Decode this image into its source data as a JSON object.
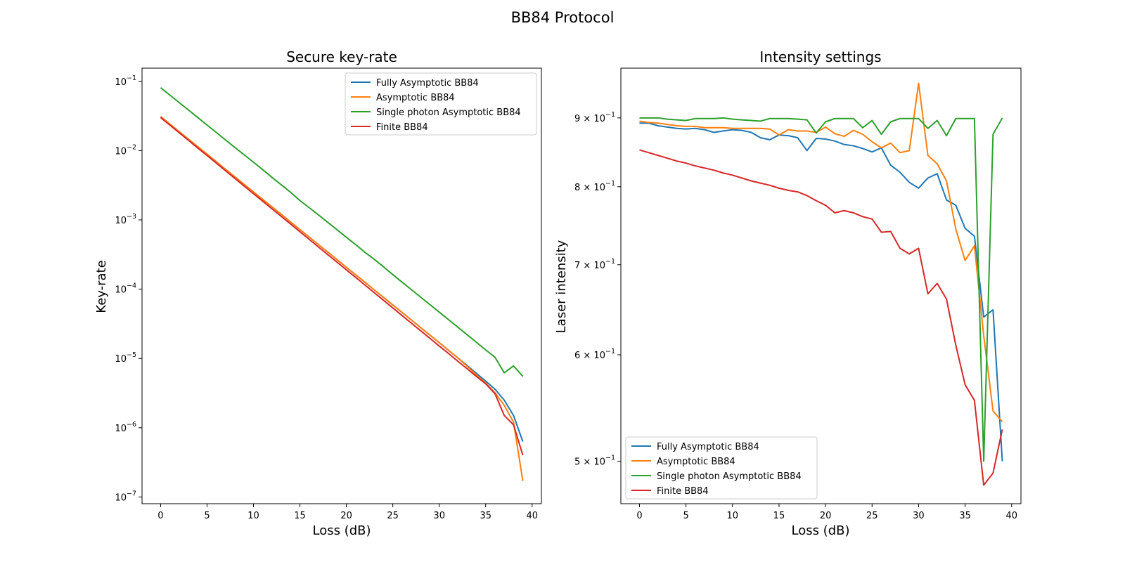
{
  "figure_title": "BB84 Protocol",
  "colors": {
    "Fully Asymptotic BB84": "#1f77b4",
    "Asymptotic BB84": "#ff7f0e",
    "Single photon Asymptotic BB84": "#2ca02c",
    "Finite BB84": "#d62728"
  },
  "chart_data": [
    {
      "type": "line",
      "title": "Secure key-rate",
      "xlabel": "Loss (dB)",
      "ylabel": "Key-rate",
      "yscale": "log",
      "xlim": [
        -2,
        41
      ],
      "ylim": [
        8e-08,
        0.155
      ],
      "xticks": [
        0,
        5,
        10,
        15,
        20,
        25,
        30,
        35,
        40
      ],
      "xtick_labels": [
        "0",
        "5",
        "10",
        "15",
        "20",
        "25",
        "30",
        "35",
        "40"
      ],
      "yticks": [
        {
          "value": 1e-07,
          "base": "10",
          "exp": "−7"
        },
        {
          "value": 1e-06,
          "base": "10",
          "exp": "−6"
        },
        {
          "value": 1e-05,
          "base": "10",
          "exp": "−5"
        },
        {
          "value": 0.0001,
          "base": "10",
          "exp": "−4"
        },
        {
          "value": 0.001,
          "base": "10",
          "exp": "−3"
        },
        {
          "value": 0.01,
          "base": "10",
          "exp": "−2"
        },
        {
          "value": 0.1,
          "base": "10",
          "exp": "−1"
        }
      ],
      "grid": false,
      "legend_position": "upper-right",
      "x": [
        0,
        1,
        2,
        3,
        4,
        5,
        6,
        7,
        8,
        9,
        10,
        11,
        12,
        13,
        14,
        15,
        16,
        17,
        18,
        19,
        20,
        21,
        22,
        23,
        24,
        25,
        26,
        27,
        28,
        29,
        30,
        31,
        32,
        33,
        34,
        35,
        36,
        37,
        38,
        39
      ],
      "series": [
        {
          "name": "Fully Asymptotic BB84",
          "values": [
            0.031,
            0.0241,
            0.0188,
            0.0146,
            0.0114,
            0.0089,
            0.0069,
            0.00536,
            0.00418,
            0.00325,
            0.00253,
            0.00197,
            0.00154,
            0.0012,
            0.00093,
            0.000724,
            0.000564,
            0.000439,
            0.000342,
            0.000266,
            0.000207,
            0.000161,
            0.000126,
            9.77e-05,
            7.61e-05,
            5.92e-05,
            4.61e-05,
            3.59e-05,
            2.79e-05,
            2.17e-05,
            1.69e-05,
            1.31e-05,
            1.02e-05,
            7.9e-06,
            6.1e-06,
            4.7e-06,
            3.6e-06,
            2.5e-06,
            1.5e-06,
            6.3e-07
          ]
        },
        {
          "name": "Asymptotic BB84",
          "values": [
            0.031,
            0.0241,
            0.0188,
            0.0146,
            0.0114,
            0.0089,
            0.0069,
            0.00536,
            0.00418,
            0.00325,
            0.00253,
            0.00197,
            0.00154,
            0.0012,
            0.00093,
            0.000724,
            0.000564,
            0.000439,
            0.000342,
            0.000266,
            0.000207,
            0.000161,
            0.000126,
            9.77e-05,
            7.61e-05,
            5.92e-05,
            4.61e-05,
            3.59e-05,
            2.79e-05,
            2.17e-05,
            1.69e-05,
            1.31e-05,
            1.02e-05,
            7.7e-06,
            5.8e-06,
            4.4e-06,
            3.2e-06,
            2.1e-06,
            1.2e-06,
            1.7e-07
          ]
        },
        {
          "name": "Single photon Asymptotic BB84",
          "values": [
            0.081,
            0.0633,
            0.0494,
            0.0385,
            0.03,
            0.0234,
            0.0183,
            0.0142,
            0.0111,
            0.0087,
            0.0068,
            0.0053,
            0.0041,
            0.0032,
            0.0025,
            0.0019,
            0.0015,
            0.00118,
            0.00092,
            0.00072,
            0.00056,
            0.00044,
            0.00034,
            0.00027,
            0.00021,
            0.000162,
            0.000126,
            9.85e-05,
            7.67e-05,
            5.98e-05,
            4.66e-05,
            3.63e-05,
            2.83e-05,
            2.2e-05,
            1.71e-05,
            1.33e-05,
            1.04e-05,
            6.2e-06,
            7.8e-06,
            5.5e-06
          ]
        },
        {
          "name": "Finite BB84",
          "values": [
            0.03,
            0.0233,
            0.0181,
            0.0141,
            0.0109,
            0.0085,
            0.0066,
            0.00511,
            0.00397,
            0.00308,
            0.00239,
            0.00186,
            0.00144,
            0.00112,
            0.00087,
            0.000674,
            0.000523,
            0.000406,
            0.000315,
            0.000245,
            0.00019,
            0.000148,
            0.000115,
            8.89e-05,
            6.91e-05,
            5.36e-05,
            4.16e-05,
            3.23e-05,
            2.51e-05,
            1.95e-05,
            1.51e-05,
            1.18e-05,
            9.1e-06,
            7.1e-06,
            5.5e-06,
            4.3e-06,
            3.1e-06,
            1.5e-06,
            1.1e-06,
            4e-07
          ]
        }
      ]
    },
    {
      "type": "line",
      "title": "Intensity settings",
      "xlabel": "Loss (dB)",
      "ylabel": "Laser intensity",
      "yscale": "log",
      "xlim": [
        -2,
        41
      ],
      "ylim": [
        0.465,
        0.98
      ],
      "xticks": [
        0,
        5,
        10,
        15,
        20,
        25,
        30,
        35,
        40
      ],
      "xtick_labels": [
        "0",
        "5",
        "10",
        "15",
        "20",
        "25",
        "30",
        "35",
        "40"
      ],
      "yticks": [
        {
          "value": 0.5,
          "base": "5 × 10",
          "exp": "−1"
        },
        {
          "value": 0.6,
          "base": "6 × 10",
          "exp": "−1"
        },
        {
          "value": 0.7,
          "base": "7 × 10",
          "exp": "−1"
        },
        {
          "value": 0.8,
          "base": "8 × 10",
          "exp": "−1"
        },
        {
          "value": 0.9,
          "base": "9 × 10",
          "exp": "−1"
        }
      ],
      "grid": false,
      "legend_position": "lower-left",
      "x": [
        0,
        1,
        2,
        3,
        4,
        5,
        6,
        7,
        8,
        9,
        10,
        11,
        12,
        13,
        14,
        15,
        16,
        17,
        18,
        19,
        20,
        21,
        22,
        23,
        24,
        25,
        26,
        27,
        28,
        29,
        30,
        31,
        32,
        33,
        34,
        35,
        36,
        37,
        38,
        39
      ],
      "series": [
        {
          "name": "Fully Asymptotic BB84",
          "values": [
            0.892,
            0.892,
            0.888,
            0.886,
            0.884,
            0.883,
            0.884,
            0.882,
            0.878,
            0.88,
            0.882,
            0.881,
            0.878,
            0.87,
            0.867,
            0.874,
            0.873,
            0.87,
            0.851,
            0.869,
            0.868,
            0.865,
            0.86,
            0.858,
            0.854,
            0.849,
            0.855,
            0.83,
            0.82,
            0.806,
            0.798,
            0.812,
            0.818,
            0.782,
            0.775,
            0.745,
            0.735,
            0.64,
            0.648,
            0.5
          ]
        },
        {
          "name": "Asymptotic BB84",
          "values": [
            0.895,
            0.893,
            0.892,
            0.89,
            0.888,
            0.887,
            0.887,
            0.885,
            0.885,
            0.885,
            0.884,
            0.884,
            0.884,
            0.884,
            0.883,
            0.874,
            0.882,
            0.88,
            0.88,
            0.878,
            0.886,
            0.876,
            0.872,
            0.881,
            0.875,
            0.864,
            0.855,
            0.862,
            0.848,
            0.851,
            0.955,
            0.844,
            0.832,
            0.808,
            0.744,
            0.705,
            0.723,
            0.62,
            0.545,
            0.535
          ]
        },
        {
          "name": "Single photon Asymptotic BB84",
          "values": [
            0.9,
            0.9,
            0.9,
            0.898,
            0.897,
            0.896,
            0.899,
            0.899,
            0.899,
            0.9,
            0.898,
            0.897,
            0.896,
            0.895,
            0.899,
            0.899,
            0.899,
            0.898,
            0.897,
            0.877,
            0.894,
            0.899,
            0.899,
            0.899,
            0.885,
            0.896,
            0.875,
            0.894,
            0.899,
            0.899,
            0.899,
            0.884,
            0.896,
            0.873,
            0.899,
            0.899,
            0.899,
            0.5,
            0.875,
            0.9
          ]
        },
        {
          "name": "Finite BB84",
          "values": [
            0.852,
            0.848,
            0.844,
            0.84,
            0.836,
            0.833,
            0.829,
            0.826,
            0.823,
            0.819,
            0.816,
            0.812,
            0.808,
            0.805,
            0.802,
            0.798,
            0.795,
            0.793,
            0.788,
            0.781,
            0.775,
            0.765,
            0.768,
            0.765,
            0.76,
            0.757,
            0.74,
            0.741,
            0.72,
            0.713,
            0.72,
            0.666,
            0.678,
            0.66,
            0.61,
            0.57,
            0.555,
            0.48,
            0.49,
            0.528
          ]
        }
      ]
    }
  ]
}
